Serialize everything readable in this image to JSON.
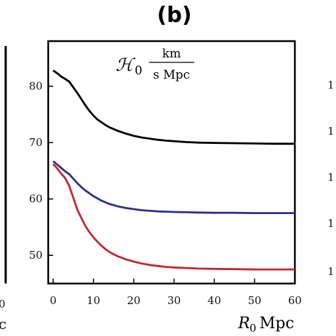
{
  "panel_label": "(b)",
  "chart_data": {
    "type": "line",
    "xlabel_symbol": "R",
    "xlabel_sub": "0",
    "xlabel_unit": "Mpc",
    "annotation": {
      "symbol": "ℋ",
      "sub": "0",
      "numerator": "km",
      "denominator": "s Mpc"
    },
    "xlim": [
      0,
      60
    ],
    "ylim": [
      45,
      88
    ],
    "xticks": [
      0,
      10,
      20,
      30,
      40,
      50,
      60
    ],
    "yticks": [
      50,
      60,
      70,
      80
    ],
    "grid": false,
    "series": [
      {
        "color": "#000000",
        "x": [
          0,
          1,
          2,
          3,
          4,
          5,
          6,
          7,
          8,
          9,
          10,
          11,
          12,
          13,
          14,
          15,
          16,
          18,
          20,
          22,
          24,
          26,
          28,
          30,
          33,
          36,
          40,
          45,
          50,
          55,
          60
        ],
        "y": [
          82.8,
          82.3,
          81.7,
          81.3,
          80.8,
          79.8,
          78.8,
          77.7,
          76.6,
          75.6,
          74.8,
          74.1,
          73.6,
          73.1,
          72.7,
          72.4,
          72.1,
          71.6,
          71.2,
          70.9,
          70.7,
          70.5,
          70.35,
          70.25,
          70.1,
          70.0,
          69.95,
          69.9,
          69.85,
          69.8,
          69.8
        ]
      },
      {
        "color": "#2b2f8c",
        "x": [
          0,
          1,
          2,
          3,
          4,
          5,
          6,
          7,
          8,
          9,
          10,
          11,
          12,
          13,
          14,
          15,
          16,
          18,
          20,
          22,
          24,
          26,
          28,
          30,
          33,
          36,
          40,
          45,
          50,
          55,
          60
        ],
        "y": [
          66.7,
          66.1,
          65.5,
          64.9,
          64.4,
          63.6,
          62.8,
          62.1,
          61.5,
          61.0,
          60.5,
          60.1,
          59.7,
          59.4,
          59.1,
          58.9,
          58.7,
          58.4,
          58.2,
          58.0,
          57.9,
          57.8,
          57.75,
          57.7,
          57.65,
          57.6,
          57.55,
          57.55,
          57.5,
          57.5,
          57.5
        ]
      },
      {
        "color": "#c0282d",
        "x": [
          0,
          1,
          2,
          3,
          4,
          5,
          6,
          7,
          8,
          9,
          10,
          11,
          12,
          13,
          14,
          15,
          16,
          18,
          20,
          22,
          24,
          26,
          28,
          30,
          33,
          36,
          40,
          45,
          50,
          55,
          60
        ],
        "y": [
          66.2,
          65.4,
          64.5,
          63.7,
          62.3,
          60.2,
          58.1,
          56.6,
          55.2,
          54.1,
          53.2,
          52.4,
          51.7,
          51.1,
          50.6,
          50.2,
          49.85,
          49.3,
          48.9,
          48.55,
          48.3,
          48.1,
          47.95,
          47.85,
          47.75,
          47.65,
          47.6,
          47.55,
          47.5,
          47.5,
          47.5
        ]
      }
    ]
  }
}
